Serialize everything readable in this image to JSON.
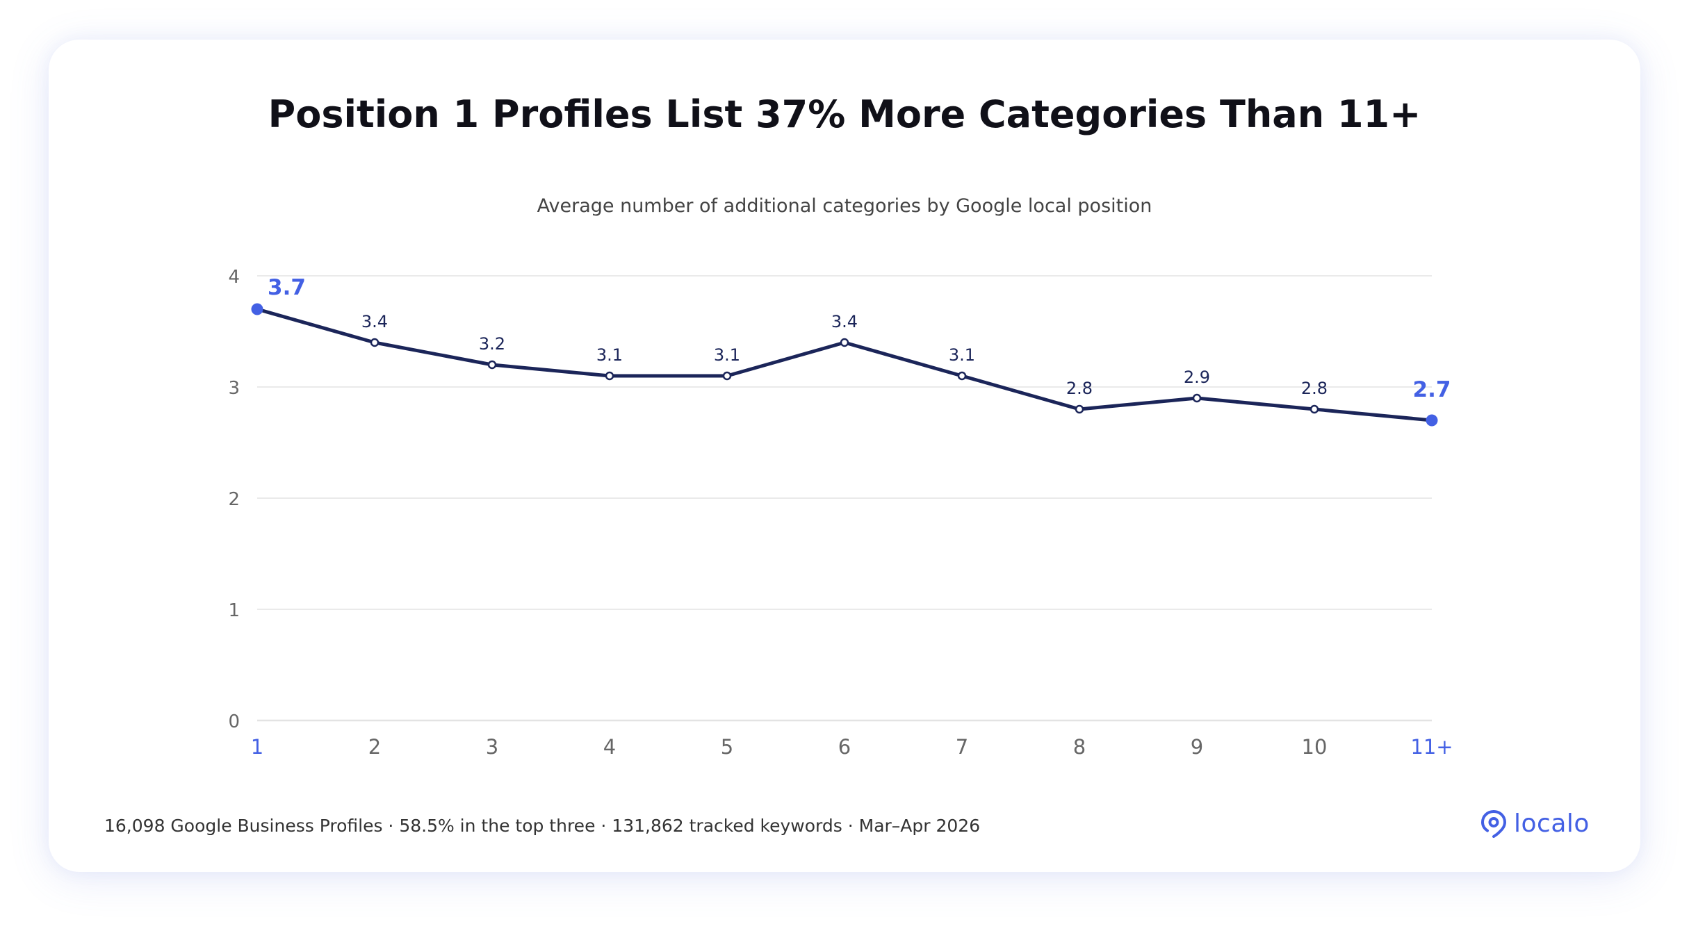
{
  "title": "Position 1 Profiles List 37% More Categories Than 11+",
  "subtitle": "Average number of additional categories by Google local position",
  "footer": "16,098 Google Business Profiles · 58.5% in the top three · 131,862 tracked keywords · Mar–Apr 2026",
  "brand": {
    "name": "localo",
    "icon": "location-pin-icon",
    "color": "#4360e4"
  },
  "colors": {
    "line": "#1b2559",
    "highlight": "#4360e4",
    "grid": "#e3e3e3",
    "tick": "#666666"
  },
  "chart_data": {
    "type": "line",
    "categories": [
      "1",
      "2",
      "3",
      "4",
      "5",
      "6",
      "7",
      "8",
      "9",
      "10",
      "11+"
    ],
    "values": [
      3.7,
      3.4,
      3.2,
      3.1,
      3.1,
      3.4,
      3.1,
      2.8,
      2.9,
      2.8,
      2.7
    ],
    "labels": [
      "3.7",
      "3.4",
      "3.2",
      "3.1",
      "3.1",
      "3.4",
      "3.1",
      "2.8",
      "2.9",
      "2.8",
      "2.7"
    ],
    "highlighted": [
      "1",
      "11+"
    ],
    "yticks": [
      "0",
      "1",
      "2",
      "3",
      "4"
    ],
    "ylim": [
      0,
      4
    ],
    "grid": true,
    "legend": "none"
  }
}
